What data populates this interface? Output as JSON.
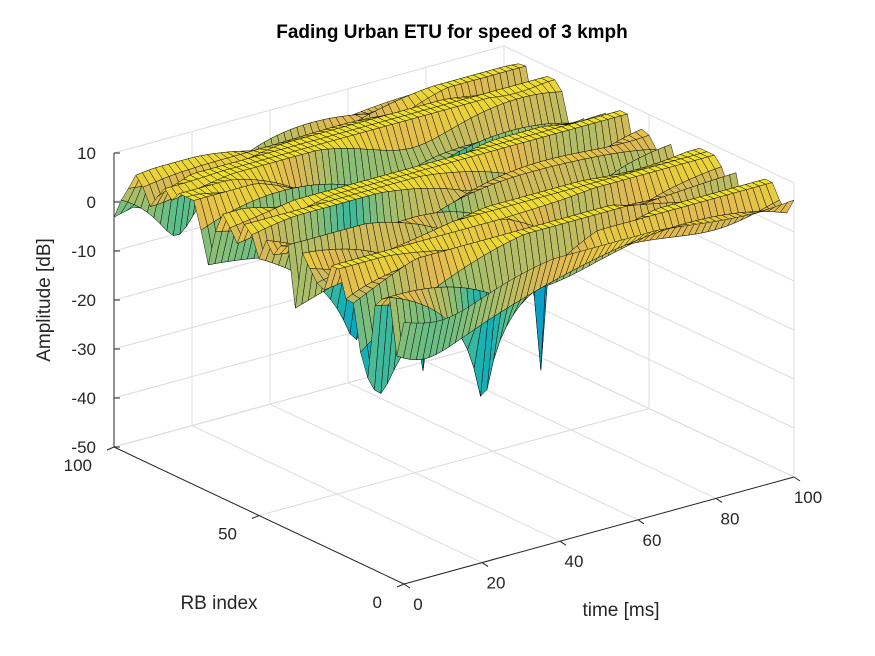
{
  "chart_data": {
    "type": "surface",
    "title": "Fading Urban ETU for speed of 3 kmph",
    "xlabel": "time [ms]",
    "ylabel": "RB index",
    "zlabel": "Amplitude [dB]",
    "xlim": [
      0,
      100
    ],
    "ylim": [
      0,
      100
    ],
    "zlim": [
      -50,
      10
    ],
    "xticks": [
      "0",
      "20",
      "40",
      "60",
      "80",
      "100"
    ],
    "yticks": [
      "0",
      "50",
      "100"
    ],
    "zticks": [
      "10",
      "0",
      "-10",
      "-20",
      "-30",
      "-40",
      "-50"
    ],
    "grid": true,
    "colormap": "parula",
    "edge_color": "#000000",
    "surface_summary": {
      "z_max_approx": 8,
      "z_min_approx": -45,
      "deep_fades": [
        {
          "time": 20,
          "rb": 5,
          "z": -45
        },
        {
          "time": 60,
          "rb": 2,
          "z": -38
        },
        {
          "time": 5,
          "rb": 40,
          "z": -28
        },
        {
          "time": 30,
          "rb": 30,
          "z": -40
        }
      ]
    }
  }
}
